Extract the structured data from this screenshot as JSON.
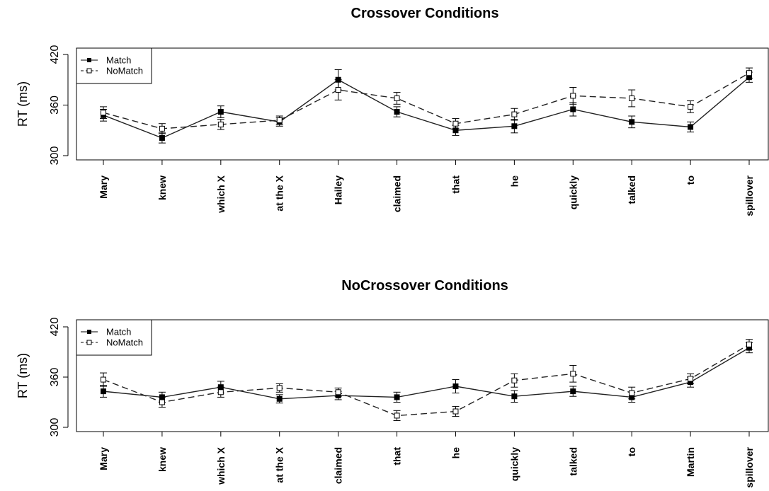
{
  "chart_data": [
    {
      "type": "line",
      "title": "Crossover Conditions",
      "ylabel": "RT (ms)",
      "xlabel": "",
      "ylim": [
        295,
        425
      ],
      "yticks": [
        300,
        360,
        420
      ],
      "categories": [
        "Mary",
        "knew",
        "which X",
        "at the X",
        "Hailey",
        "claimed",
        "that",
        "he",
        "quickly",
        "talked",
        "to",
        "spillover"
      ],
      "legend_position": "top-left",
      "series": [
        {
          "name": "Match",
          "marker": "filled-square",
          "line": "solid",
          "values": [
            348,
            321,
            352,
            340,
            390,
            352,
            330,
            335,
            355,
            340,
            334,
            393
          ],
          "error": [
            7,
            6,
            7,
            5,
            12,
            6,
            6,
            8,
            8,
            7,
            6,
            6
          ]
        },
        {
          "name": "NoMatch",
          "marker": "open-square",
          "line": "dashed",
          "values": [
            351,
            332,
            337,
            342,
            378,
            368,
            338,
            349,
            371,
            368,
            358,
            398
          ],
          "error": [
            7,
            6,
            6,
            5,
            12,
            7,
            6,
            7,
            10,
            10,
            7,
            6
          ]
        }
      ]
    },
    {
      "type": "line",
      "title": "NoCrossover Conditions",
      "ylabel": "RT (ms)",
      "xlabel": "",
      "ylim": [
        295,
        425
      ],
      "yticks": [
        300,
        360,
        420
      ],
      "categories": [
        "Mary",
        "knew",
        "which X",
        "at the X",
        "claimed",
        "that",
        "he",
        "quickly",
        "talked",
        "to",
        "Martin",
        "spillover"
      ],
      "legend_position": "top-left",
      "series": [
        {
          "name": "Match",
          "marker": "filled-square",
          "line": "solid",
          "values": [
            343,
            336,
            348,
            334,
            338,
            336,
            349,
            337,
            343,
            336,
            354,
            395
          ],
          "error": [
            7,
            6,
            7,
            5,
            5,
            6,
            8,
            7,
            6,
            6,
            6,
            6
          ]
        },
        {
          "name": "NoMatch",
          "marker": "open-square",
          "line": "dashed",
          "values": [
            357,
            330,
            342,
            347,
            342,
            314,
            319,
            356,
            364,
            341,
            358,
            399
          ],
          "error": [
            8,
            6,
            6,
            5,
            5,
            6,
            6,
            8,
            10,
            7,
            6,
            6
          ]
        }
      ]
    }
  ]
}
